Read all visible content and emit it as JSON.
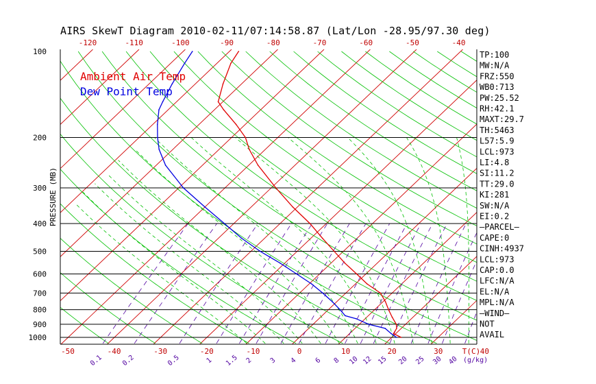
{
  "chart_data": {
    "type": "line",
    "subtype": "skew-t log-p diagram",
    "title": "AIRS SkewT Diagram 2010-02-11/07:14:58.87 (Lat/Lon -28.95/97.30 deg)",
    "ylabel": "PRESSURE (MB)",
    "xlabel": "T(C)",
    "mixing_ratio_label": "(g/kg)",
    "pressure_ticks": [
      100,
      200,
      300,
      400,
      500,
      600,
      700,
      800,
      900,
      1000
    ],
    "pressure_levels_drawn": [
      200,
      300,
      400,
      500,
      600,
      700,
      800,
      900,
      1000
    ],
    "top_temperature_ticks": [
      -120,
      -110,
      -100,
      -90,
      -80,
      -70,
      -60,
      -50,
      -40
    ],
    "bottom_temperature_ticks": [
      -50,
      -40,
      -30,
      -20,
      -10,
      0,
      10,
      20,
      30,
      40
    ],
    "mixing_ratio_ticks": [
      "0.1",
      "0.2",
      "0.5",
      "1",
      "1.5",
      "2",
      "3",
      "4",
      "6",
      "8",
      "10",
      "12",
      "15",
      "20",
      "25",
      "30",
      "40"
    ],
    "ylim": [
      1050,
      100
    ],
    "y_scale": "log",
    "series": [
      {
        "name": "Ambient Air Temp",
        "color": "#e00000",
        "pressure": [
          1000,
          970,
          930,
          900,
          850,
          800,
          750,
          700,
          650,
          600,
          550,
          500,
          450,
          400,
          350,
          300,
          250,
          220,
          200,
          180,
          160,
          150,
          130,
          110,
          100
        ],
        "temperature": [
          22.0,
          19.5,
          19.0,
          18.0,
          15.5,
          13.0,
          10.5,
          7.5,
          2.5,
          -2.0,
          -7.0,
          -12.0,
          -17.5,
          -23.5,
          -31.0,
          -39.0,
          -48.0,
          -53.5,
          -57.0,
          -62.0,
          -68.0,
          -71.0,
          -74.0,
          -77.0,
          -78.0
        ]
      },
      {
        "name": "Dew Point Temp",
        "color": "#0000e0",
        "pressure": [
          1000,
          970,
          930,
          900,
          860,
          840,
          800,
          750,
          700,
          650,
          600,
          550,
          500,
          450,
          400,
          350,
          300,
          250,
          220,
          200,
          180,
          160,
          150,
          130,
          110,
          100
        ],
        "temperature": [
          21.0,
          19.0,
          16.5,
          12.0,
          8.0,
          5.0,
          2.5,
          -1.0,
          -5.0,
          -9.5,
          -15.0,
          -21.0,
          -28.0,
          -35.0,
          -42.0,
          -50.0,
          -59.0,
          -68.0,
          -73.0,
          -76.0,
          -79.0,
          -82.0,
          -83.0,
          -85.0,
          -87.0,
          -88.0
        ]
      }
    ],
    "grid": true,
    "legend_position": "top-left"
  },
  "indices": [
    "TP:100",
    "MW:N/A",
    "FRZ:550",
    "WB0:713",
    "PW:25.52",
    "RH:42.1",
    "MAXT:29.7",
    "TH:5463",
    "L57:5.9",
    "LCL:973",
    "LI:4.8",
    "SI:11.2",
    "TT:29.0",
    "KI:281",
    "SW:N/A",
    "EI:0.2",
    "—PARCEL—",
    "CAPE:0",
    "CINH:4937",
    "LCL:973",
    "CAP:0.0",
    "LFC:N/A",
    "EL:N/A",
    "MPL:N/A",
    "—WIND—",
    "NOT",
    "AVAIL"
  ],
  "colors": {
    "air": "#e00000",
    "dew": "#0000e0",
    "isotherm": "#d00000",
    "dry_adiabat": "#00c000",
    "moist_adiabat": "#00c000",
    "mixing_ratio": "#5000a0",
    "isobar": "#000000"
  }
}
